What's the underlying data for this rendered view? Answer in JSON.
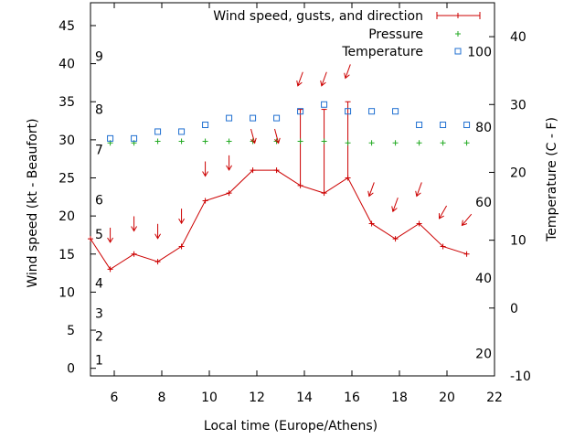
{
  "chart_data": {
    "type": "line",
    "xlabel": "Local time (Europe/Athens)",
    "ylabel_left": "Wind speed (kt - Beaufort)",
    "ylabel_right": "Temperature (C - F)",
    "xlim": [
      5,
      22
    ],
    "ylim_left": [
      -1,
      48
    ],
    "ylim_right": [
      -10,
      45
    ],
    "x_ticks": [
      6,
      8,
      10,
      12,
      14,
      16,
      18,
      20,
      22
    ],
    "y_left_ticks": [
      0,
      5,
      10,
      15,
      20,
      25,
      30,
      35,
      40,
      45
    ],
    "y_right_ticks": [
      -10,
      0,
      10,
      20,
      30,
      40
    ],
    "beaufort_labels": [
      {
        "label": "1",
        "wind": 1.1
      },
      {
        "label": "2",
        "wind": 4.2
      },
      {
        "label": "3",
        "wind": 7.2
      },
      {
        "label": "4",
        "wind": 11.2
      },
      {
        "label": "5",
        "wind": 17.6
      },
      {
        "label": "6",
        "wind": 22.1
      },
      {
        "label": "7",
        "wind": 28.7
      },
      {
        "label": "8",
        "wind": 34.0
      },
      {
        "label": "9",
        "wind": 41.0
      }
    ],
    "fahrenheit_labels": [
      {
        "label": "20",
        "temp": -6.7
      },
      {
        "label": "40",
        "temp": 4.4
      },
      {
        "label": "60",
        "temp": 15.6
      },
      {
        "label": "80",
        "temp": 26.7
      },
      {
        "label": "100",
        "temp": 37.8
      }
    ],
    "legend": {
      "position": "top-right",
      "entries": [
        "Wind speed, gusts, and direction",
        "Pressure",
        "Temperature"
      ]
    },
    "colors": {
      "wind": "#cc0000",
      "pressure": "#22aa22",
      "temperature": "#1f6fd1",
      "axis": "#000000"
    },
    "series": [
      {
        "name": "Wind speed, gusts, and direction",
        "x": [
          5,
          5.83,
          6.83,
          7.83,
          8.83,
          9.83,
          10.83,
          11.83,
          12.83,
          13.83,
          14.83,
          15.83,
          16.83,
          17.83,
          18.83,
          19.83,
          20.83
        ],
        "values": [
          17,
          13,
          15,
          14,
          16,
          22,
          23,
          26,
          26,
          24,
          23,
          25,
          19,
          17,
          19,
          16,
          15
        ],
        "gusts": [
          null,
          null,
          null,
          null,
          null,
          null,
          null,
          null,
          null,
          34,
          34,
          35,
          null,
          null,
          null,
          null,
          null
        ]
      },
      {
        "name": "Pressure",
        "x": [
          5.83,
          6.83,
          7.83,
          8.83,
          9.83,
          10.83,
          11.83,
          12.83,
          13.83,
          14.83,
          15.83,
          16.83,
          17.83,
          18.83,
          19.83,
          20.83
        ],
        "values": [
          29.6,
          29.6,
          29.8,
          29.8,
          29.8,
          29.8,
          29.8,
          29.8,
          29.8,
          29.8,
          29.6,
          29.6,
          29.6,
          29.6,
          29.6,
          29.6
        ]
      },
      {
        "name": "Temperature",
        "x": [
          5.83,
          6.83,
          7.83,
          8.83,
          9.83,
          10.83,
          11.83,
          12.83,
          13.83,
          14.83,
          15.83,
          16.83,
          17.83,
          18.83,
          19.83,
          20.83
        ],
        "values": [
          25,
          25,
          26,
          26,
          27,
          28,
          28,
          28,
          29,
          30,
          29,
          29,
          29,
          27,
          27,
          27
        ]
      }
    ],
    "wind_arrows": [
      {
        "x": 5.83,
        "wind": 17.5,
        "dir": 180
      },
      {
        "x": 6.83,
        "wind": 19.0,
        "dir": 180
      },
      {
        "x": 7.83,
        "wind": 18.0,
        "dir": 180
      },
      {
        "x": 8.83,
        "wind": 20.0,
        "dir": 180
      },
      {
        "x": 9.83,
        "wind": 26.2,
        "dir": 180
      },
      {
        "x": 10.83,
        "wind": 27.0,
        "dir": 180
      },
      {
        "x": 11.83,
        "wind": 30.5,
        "dir": 165
      },
      {
        "x": 12.83,
        "wind": 30.5,
        "dir": 165
      },
      {
        "x": 13.83,
        "wind": 38.0,
        "dir": 200
      },
      {
        "x": 14.83,
        "wind": 38.0,
        "dir": 200
      },
      {
        "x": 15.83,
        "wind": 39.0,
        "dir": 200
      },
      {
        "x": 16.83,
        "wind": 23.5,
        "dir": 200
      },
      {
        "x": 17.83,
        "wind": 21.5,
        "dir": 200
      },
      {
        "x": 18.83,
        "wind": 23.5,
        "dir": 200
      },
      {
        "x": 19.83,
        "wind": 20.5,
        "dir": 210
      },
      {
        "x": 20.83,
        "wind": 19.5,
        "dir": 220
      }
    ]
  }
}
